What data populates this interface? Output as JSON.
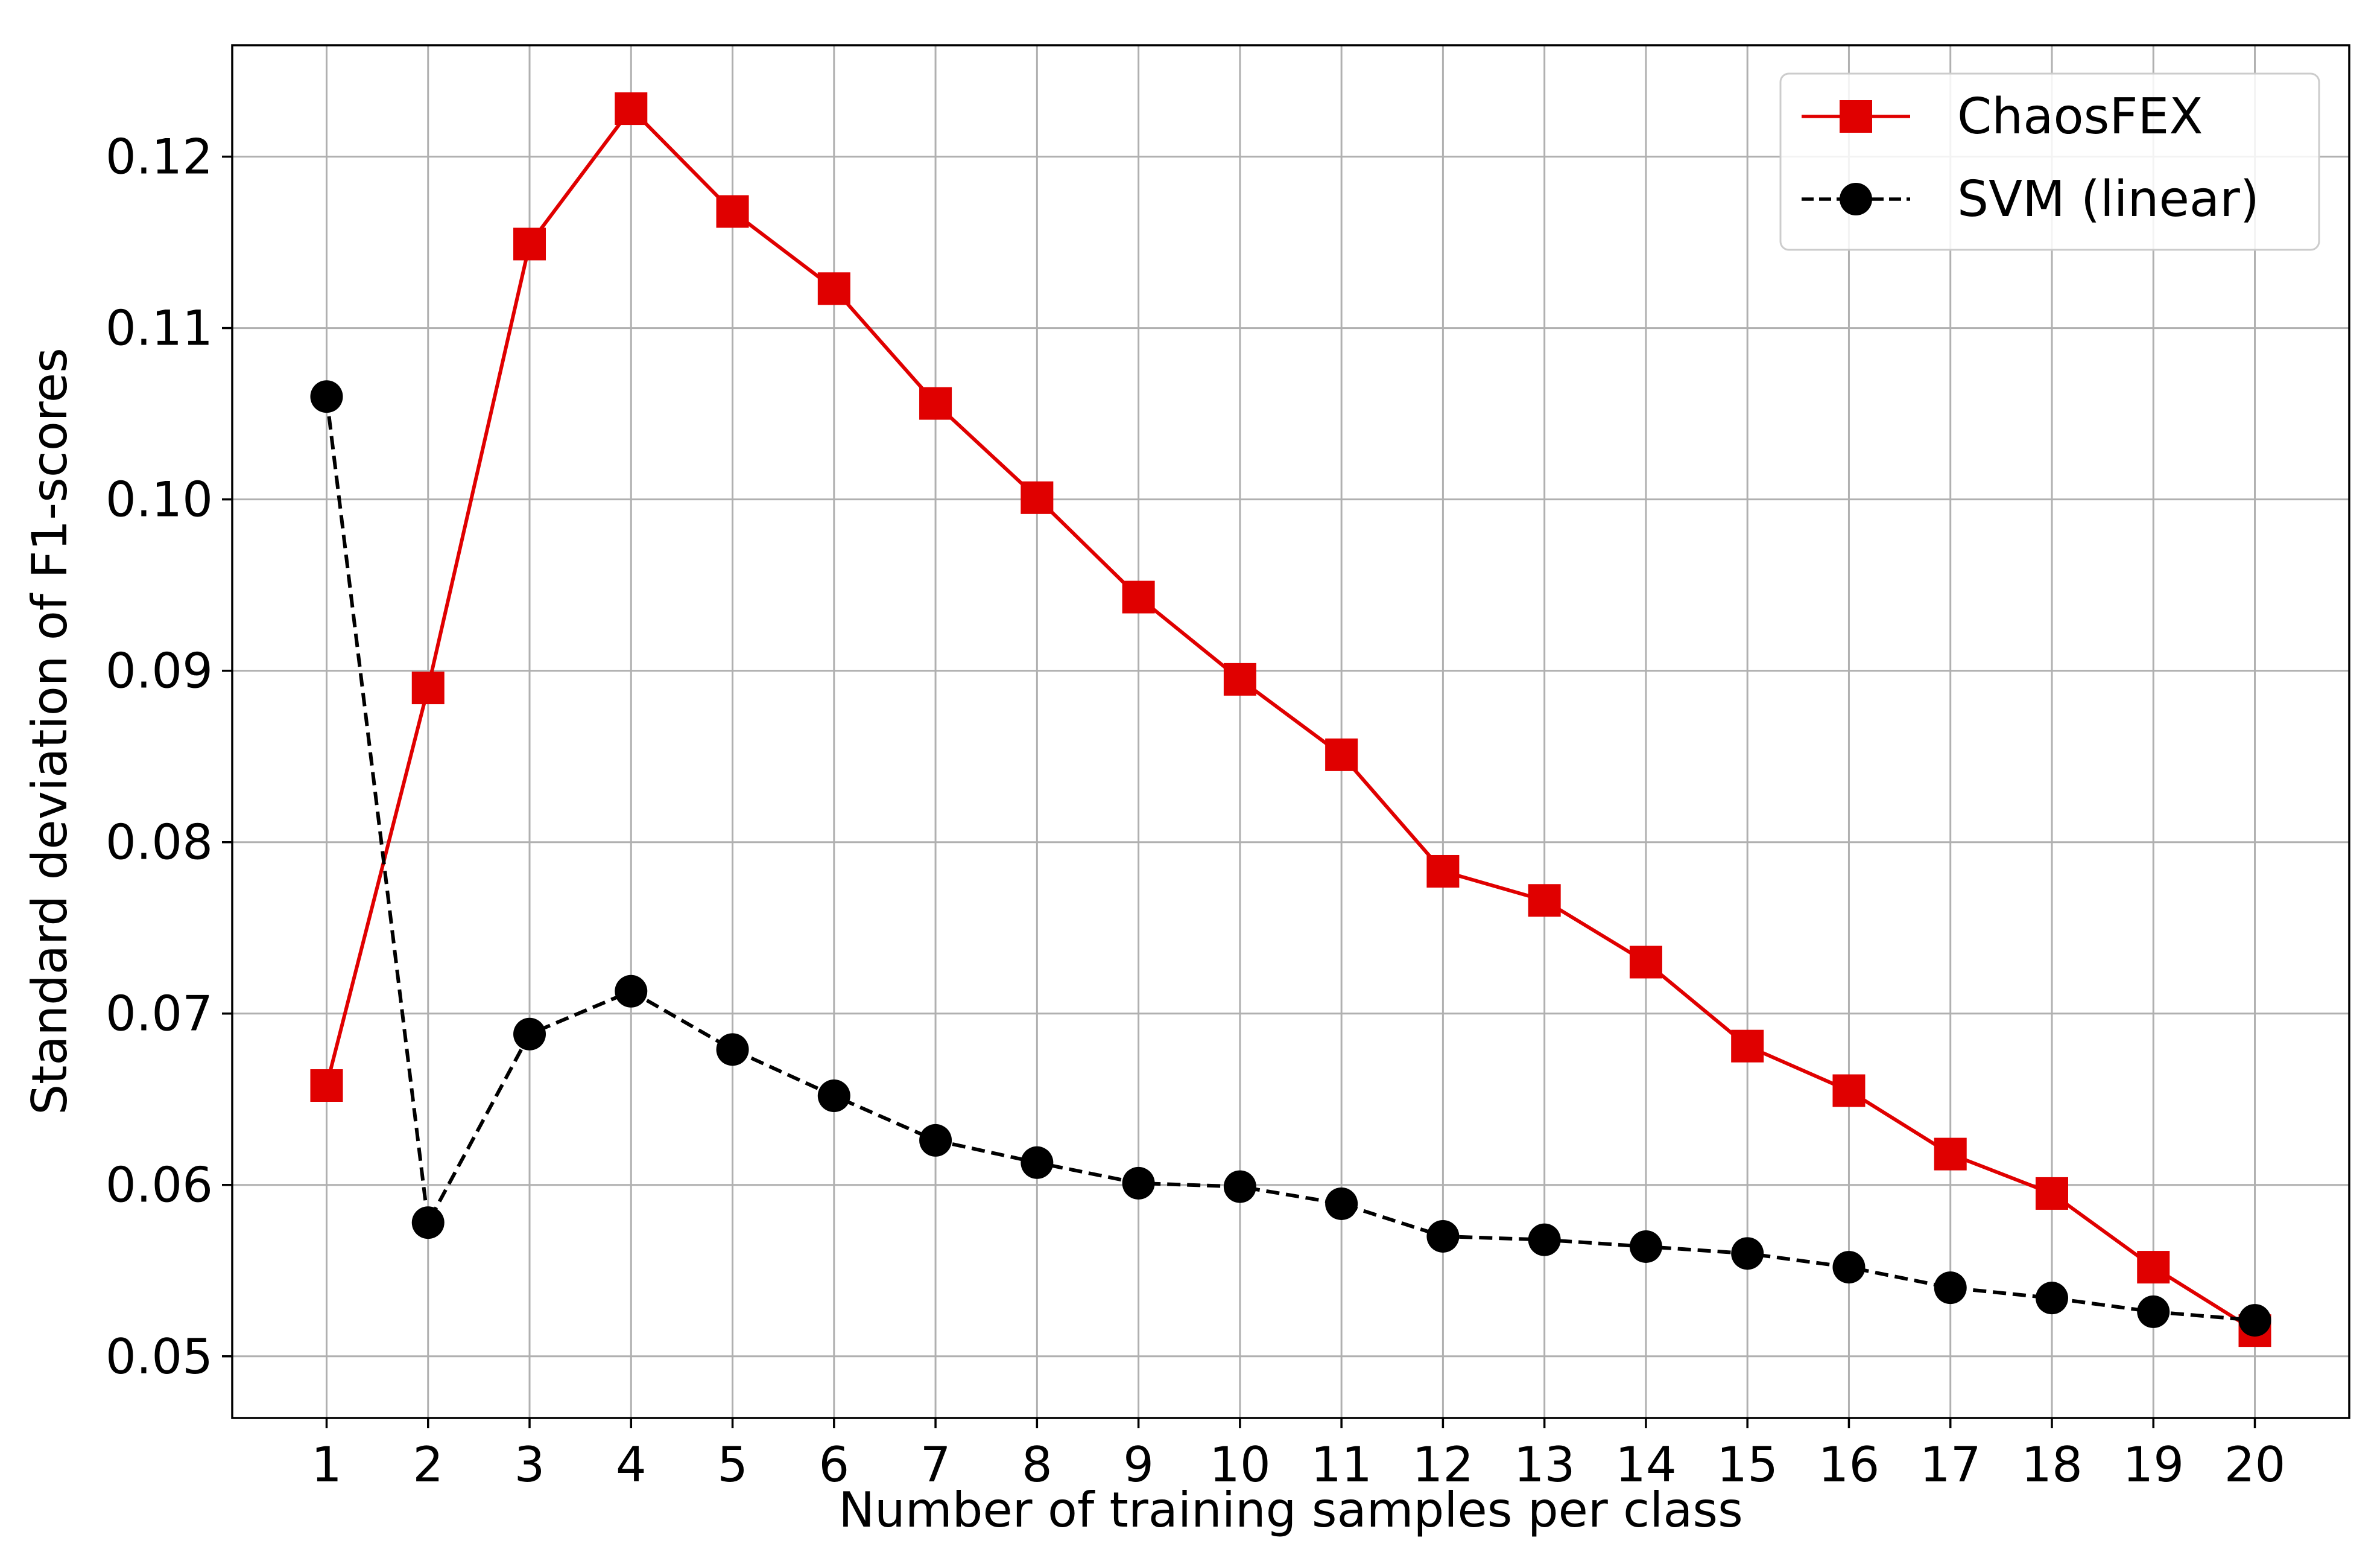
{
  "chart_data": {
    "type": "line",
    "title": "",
    "xlabel": "Number of training samples per class",
    "ylabel": "Standard deviation of F1-scores",
    "x": [
      1,
      2,
      3,
      4,
      5,
      6,
      7,
      8,
      9,
      10,
      11,
      12,
      13,
      14,
      15,
      16,
      17,
      18,
      19,
      20
    ],
    "xlim": [
      0.07,
      20.93
    ],
    "ylim": [
      0.0464,
      0.1265
    ],
    "yticks": [
      0.05,
      0.06,
      0.07,
      0.08,
      0.09,
      0.1,
      0.11,
      0.12
    ],
    "ytick_labels": [
      "0.05",
      "0.06",
      "0.07",
      "0.08",
      "0.09",
      "0.10",
      "0.11",
      "0.12"
    ],
    "xtick_labels": [
      "1",
      "2",
      "3",
      "4",
      "5",
      "6",
      "7",
      "8",
      "9",
      "10",
      "11",
      "12",
      "13",
      "14",
      "15",
      "16",
      "17",
      "18",
      "19",
      "20"
    ],
    "grid": true,
    "legend_position": "upper right",
    "series": [
      {
        "name": "ChaosFEX",
        "color": "#e00000",
        "marker": "square",
        "line_style": "solid",
        "values": [
          0.0658,
          0.089,
          0.1149,
          0.1228,
          0.1168,
          0.1123,
          0.1056,
          0.1001,
          0.0943,
          0.0895,
          0.0851,
          0.0783,
          0.0766,
          0.073,
          0.0681,
          0.0655,
          0.0618,
          0.0595,
          0.0552,
          0.0515
        ]
      },
      {
        "name": "SVM (linear)",
        "color": "#000000",
        "marker": "circle",
        "line_style": "dashed",
        "values": [
          0.106,
          0.0578,
          0.0688,
          0.0713,
          0.0679,
          0.0652,
          0.0626,
          0.0613,
          0.0601,
          0.0599,
          0.0589,
          0.057,
          0.0568,
          0.0564,
          0.056,
          0.0552,
          0.054,
          0.0534,
          0.0526,
          0.0521
        ]
      }
    ]
  }
}
